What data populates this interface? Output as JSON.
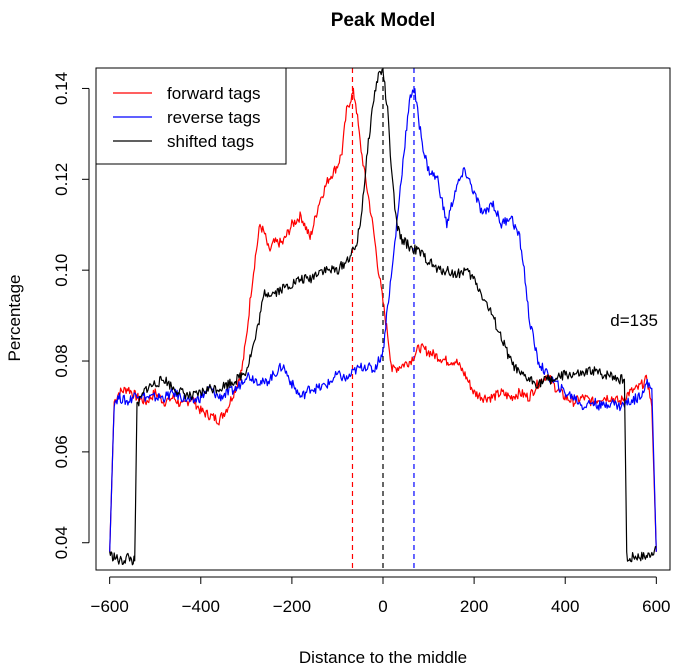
{
  "chart_data": {
    "type": "line",
    "title": "Peak Model",
    "xlabel": "Distance to the middle",
    "ylabel": "Percentage",
    "xlim": [
      -630,
      630
    ],
    "ylim": [
      0.034,
      0.1445
    ],
    "x_ticks": [
      -600,
      -400,
      -200,
      0,
      200,
      400,
      600
    ],
    "x_tick_labels": [
      "−600",
      "−400",
      "−200",
      "0",
      "200",
      "400",
      "600"
    ],
    "y_ticks": [
      0.04,
      0.06,
      0.08,
      0.1,
      0.12,
      0.14
    ],
    "y_tick_labels": [
      "0.04",
      "0.06",
      "0.08",
      "0.10",
      "0.12",
      "0.14"
    ],
    "grid": false,
    "legend_position": "top-left",
    "annotation": "d=135",
    "vlines": [
      {
        "x": -67,
        "color": "#ff0000",
        "style": "dashed"
      },
      {
        "x": 0,
        "color": "#000000",
        "style": "dashed"
      },
      {
        "x": 68,
        "color": "#0000ff",
        "style": "dashed"
      }
    ],
    "series": [
      {
        "name": "forward tags",
        "color": "#ff0000",
        "x": [
          -600,
          -590,
          -580,
          -560,
          -540,
          -520,
          -500,
          -480,
          -460,
          -440,
          -420,
          -400,
          -380,
          -360,
          -340,
          -320,
          -310,
          -300,
          -290,
          -280,
          -270,
          -260,
          -250,
          -240,
          -220,
          -200,
          -180,
          -160,
          -140,
          -120,
          -100,
          -90,
          -80,
          -70,
          -65,
          -60,
          -50,
          -40,
          -30,
          -20,
          -10,
          0,
          10,
          20,
          40,
          60,
          80,
          100,
          120,
          140,
          160,
          180,
          200,
          220,
          240,
          260,
          280,
          300,
          320,
          340,
          360,
          380,
          400,
          420,
          440,
          460,
          480,
          500,
          520,
          540,
          560,
          580,
          590,
          600
        ],
        "y": [
          0.038,
          0.071,
          0.073,
          0.074,
          0.072,
          0.071,
          0.073,
          0.071,
          0.072,
          0.07,
          0.072,
          0.069,
          0.068,
          0.067,
          0.07,
          0.075,
          0.078,
          0.085,
          0.095,
          0.103,
          0.11,
          0.108,
          0.104,
          0.106,
          0.106,
          0.11,
          0.112,
          0.107,
          0.115,
          0.12,
          0.123,
          0.126,
          0.135,
          0.138,
          0.139,
          0.137,
          0.128,
          0.121,
          0.115,
          0.108,
          0.1,
          0.093,
          0.086,
          0.078,
          0.079,
          0.08,
          0.083,
          0.082,
          0.081,
          0.08,
          0.08,
          0.077,
          0.073,
          0.072,
          0.072,
          0.073,
          0.072,
          0.073,
          0.072,
          0.075,
          0.077,
          0.074,
          0.072,
          0.071,
          0.072,
          0.071,
          0.072,
          0.072,
          0.071,
          0.073,
          0.074,
          0.076,
          0.07,
          0.038
        ]
      },
      {
        "name": "reverse tags",
        "color": "#0000ff",
        "x": [
          -600,
          -590,
          -580,
          -560,
          -540,
          -520,
          -500,
          -480,
          -460,
          -440,
          -420,
          -400,
          -380,
          -360,
          -340,
          -320,
          -300,
          -280,
          -260,
          -240,
          -220,
          -200,
          -180,
          -160,
          -140,
          -120,
          -100,
          -80,
          -60,
          -40,
          -20,
          0,
          10,
          20,
          30,
          40,
          50,
          60,
          65,
          70,
          80,
          90,
          100,
          120,
          140,
          160,
          180,
          200,
          220,
          240,
          260,
          280,
          300,
          310,
          320,
          330,
          340,
          360,
          380,
          400,
          420,
          440,
          460,
          480,
          500,
          520,
          540,
          560,
          580,
          590,
          600
        ],
        "y": [
          0.038,
          0.071,
          0.072,
          0.071,
          0.073,
          0.072,
          0.072,
          0.072,
          0.073,
          0.072,
          0.071,
          0.072,
          0.074,
          0.072,
          0.073,
          0.074,
          0.077,
          0.076,
          0.075,
          0.077,
          0.079,
          0.075,
          0.072,
          0.074,
          0.074,
          0.075,
          0.077,
          0.076,
          0.078,
          0.079,
          0.078,
          0.082,
          0.092,
          0.1,
          0.11,
          0.12,
          0.13,
          0.138,
          0.14,
          0.139,
          0.132,
          0.126,
          0.122,
          0.12,
          0.11,
          0.118,
          0.122,
          0.117,
          0.112,
          0.115,
          0.11,
          0.112,
          0.107,
          0.1,
          0.09,
          0.085,
          0.08,
          0.077,
          0.075,
          0.073,
          0.072,
          0.07,
          0.071,
          0.07,
          0.071,
          0.07,
          0.071,
          0.072,
          0.075,
          0.074,
          0.038
        ]
      },
      {
        "name": "shifted tags",
        "color": "#000000",
        "x": [
          -600,
          -595,
          -590,
          -580,
          -570,
          -560,
          -550,
          -545,
          -540,
          -530,
          -520,
          -500,
          -480,
          -460,
          -440,
          -420,
          -400,
          -380,
          -360,
          -340,
          -320,
          -300,
          -280,
          -260,
          -240,
          -220,
          -200,
          -180,
          -160,
          -140,
          -120,
          -100,
          -80,
          -60,
          -50,
          -40,
          -30,
          -20,
          -10,
          0,
          10,
          20,
          30,
          40,
          60,
          80,
          100,
          120,
          140,
          160,
          180,
          200,
          220,
          240,
          260,
          280,
          300,
          320,
          340,
          360,
          380,
          400,
          420,
          440,
          460,
          480,
          500,
          520,
          530,
          535,
          540,
          550,
          560,
          570,
          580,
          590,
          600
        ],
        "y": [
          0.038,
          0.037,
          0.037,
          0.036,
          0.036,
          0.037,
          0.036,
          0.036,
          0.07,
          0.072,
          0.074,
          0.075,
          0.076,
          0.074,
          0.073,
          0.072,
          0.073,
          0.074,
          0.074,
          0.075,
          0.076,
          0.078,
          0.085,
          0.095,
          0.095,
          0.096,
          0.097,
          0.098,
          0.098,
          0.1,
          0.1,
          0.1,
          0.102,
          0.105,
          0.11,
          0.12,
          0.13,
          0.138,
          0.143,
          0.144,
          0.135,
          0.12,
          0.11,
          0.107,
          0.105,
          0.104,
          0.102,
          0.1,
          0.1,
          0.099,
          0.1,
          0.098,
          0.094,
          0.09,
          0.085,
          0.08,
          0.077,
          0.076,
          0.075,
          0.076,
          0.076,
          0.077,
          0.077,
          0.077,
          0.078,
          0.077,
          0.077,
          0.076,
          0.076,
          0.037,
          0.036,
          0.037,
          0.037,
          0.037,
          0.037,
          0.038,
          0.039
        ]
      }
    ]
  }
}
